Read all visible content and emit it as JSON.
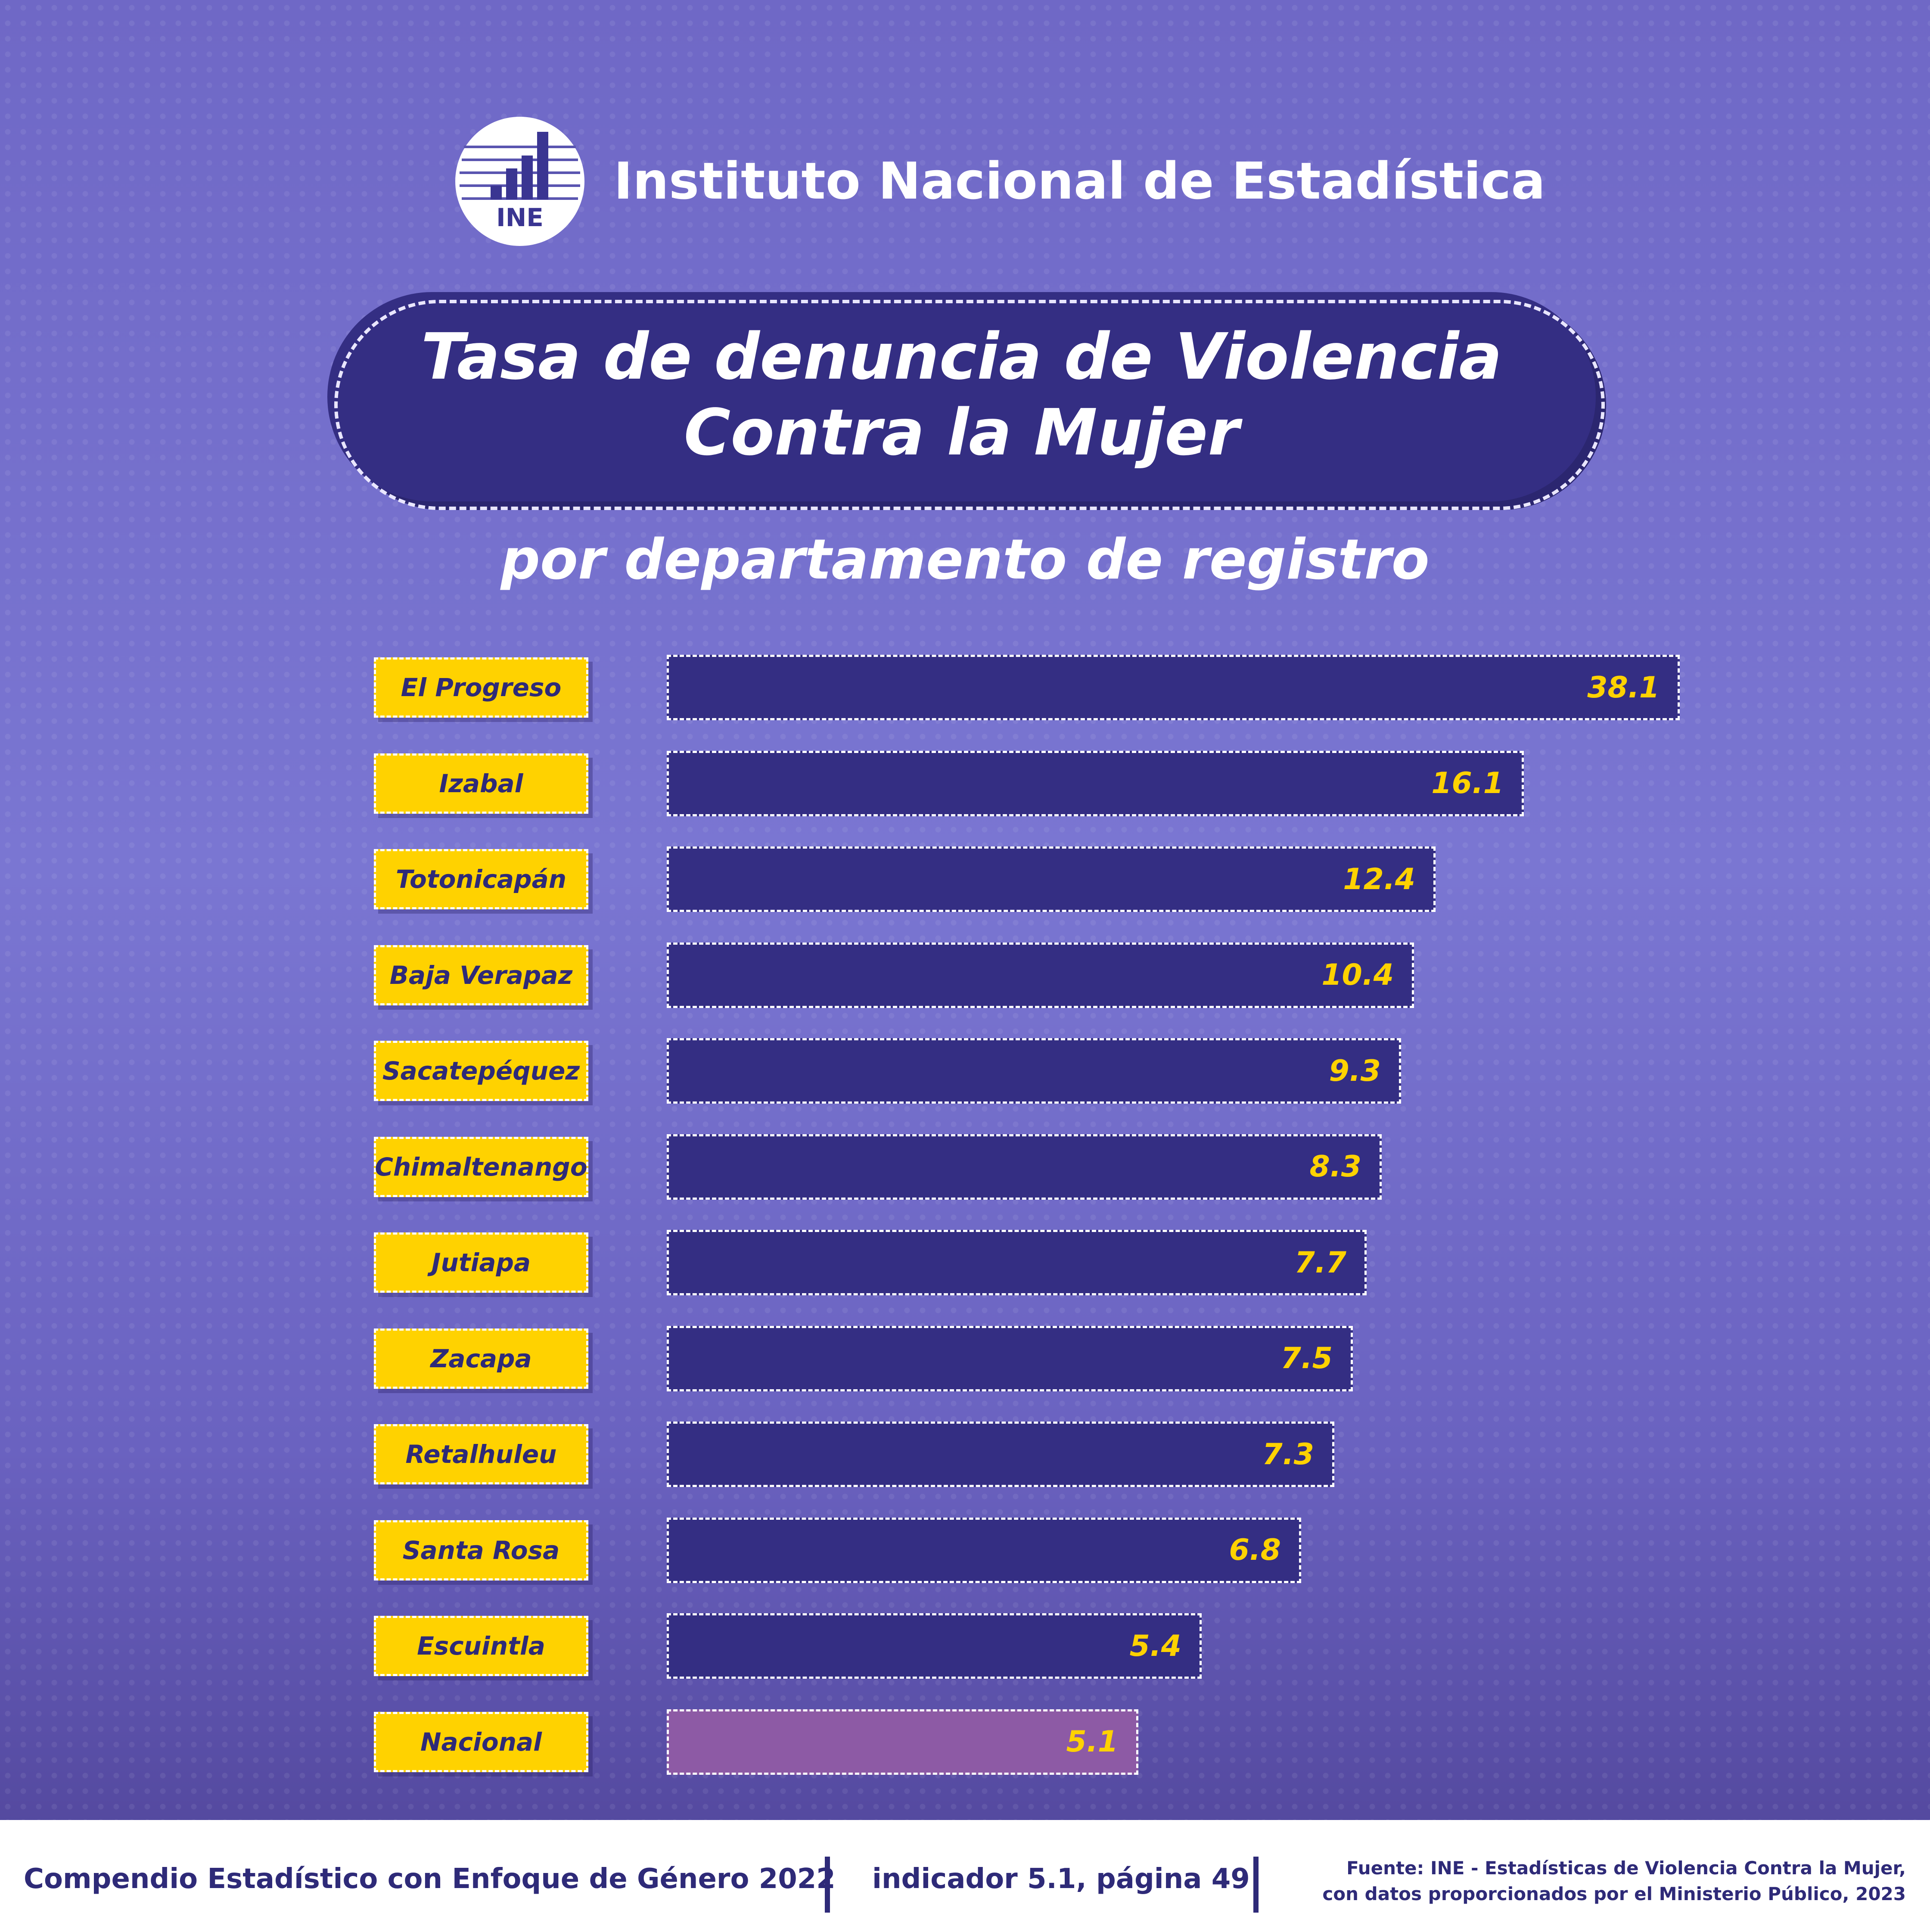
{
  "header": {
    "logo_text": "INE",
    "org_name": "Instituto Nacional de Estadística",
    "title_line1": "Tasa de denuncia de Violencia",
    "title_line2": "Contra la Mujer",
    "subtitle": "por departamento de registro"
  },
  "chart_data": {
    "type": "bar",
    "orientation": "horizontal",
    "title": "Tasa de denuncia de Violencia Contra la Mujer",
    "subtitle": "por departamento de registro",
    "categories": [
      "El Progreso",
      "Izabal",
      "Totonicapán",
      "Baja Verapaz",
      "Sacatepéquez",
      "Chimaltenango",
      "Jutiapa",
      "Zacapa",
      "Retalhuleu",
      "Santa Rosa",
      "Escuintla",
      "Nacional"
    ],
    "values": [
      38.1,
      16.1,
      12.4,
      10.4,
      9.3,
      8.3,
      7.7,
      7.5,
      7.3,
      6.8,
      5.4,
      5.1
    ],
    "value_labels": [
      "38.1",
      "16.1",
      "12.4",
      "10.4",
      "9.3",
      "8.3",
      "7.7",
      "7.5",
      "7.3",
      "6.8",
      "5.4",
      "5.1"
    ],
    "highlight_category": "Nacional",
    "colors": {
      "bar": "#342e83",
      "highlight_bar": "#8d5aa5",
      "label_background": "#ffd200",
      "value_text": "#ffd200"
    }
  },
  "footer": {
    "publication": "Compendio Estadístico con Enfoque de Género 2022",
    "indicator": "indicador 5.1, página 49",
    "source_line1": "Fuente: INE - Estadísticas de Violencia Contra la Mujer,",
    "source_line2": "con datos proporcionados por el Ministerio Público, 2023"
  }
}
